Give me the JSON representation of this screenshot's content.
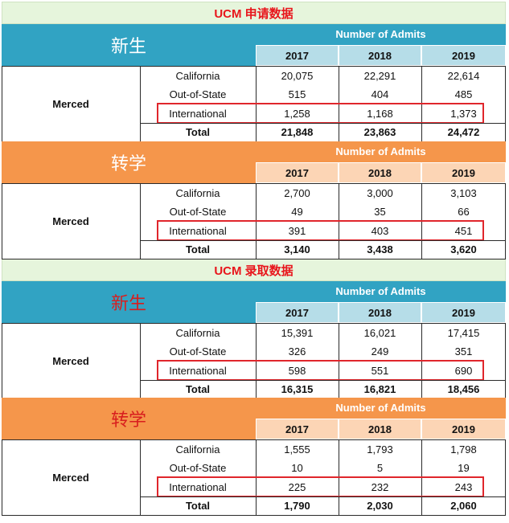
{
  "application": {
    "title": "UCM 申请数据",
    "freshman": {
      "label": "新生",
      "label_color": "#ffffff",
      "header_color": "#31a3c3",
      "metric": "Number of Admits",
      "years": [
        "2017",
        "2018",
        "2019"
      ],
      "school": "Merced",
      "rows": [
        {
          "name": "California",
          "values": [
            "20,075",
            "22,291",
            "22,614"
          ]
        },
        {
          "name": "Out-of-State",
          "values": [
            "515",
            "404",
            "485"
          ]
        },
        {
          "name": "International",
          "values": [
            "1,258",
            "1,168",
            "1,373"
          ]
        },
        {
          "name": "Total",
          "values": [
            "21,848",
            "23,863",
            "24,472"
          ]
        }
      ]
    },
    "transfer": {
      "label": "转学",
      "label_color": "#ffffff",
      "header_color": "#f5964b",
      "metric": "Number of Admits",
      "years": [
        "2017",
        "2018",
        "2019"
      ],
      "school": "Merced",
      "rows": [
        {
          "name": "California",
          "values": [
            "2,700",
            "3,000",
            "3,103"
          ]
        },
        {
          "name": "Out-of-State",
          "values": [
            "49",
            "35",
            "66"
          ]
        },
        {
          "name": "International",
          "values": [
            "391",
            "403",
            "451"
          ]
        },
        {
          "name": "Total",
          "values": [
            "3,140",
            "3,438",
            "3,620"
          ]
        }
      ]
    }
  },
  "admission": {
    "title": "UCM 录取数据",
    "freshman": {
      "label": "新生",
      "label_color": "#d81e1e",
      "header_color": "#31a3c3",
      "metric": "Number of Admits",
      "years": [
        "2017",
        "2018",
        "2019"
      ],
      "school": "Merced",
      "rows": [
        {
          "name": "California",
          "values": [
            "15,391",
            "16,021",
            "17,415"
          ]
        },
        {
          "name": "Out-of-State",
          "values": [
            "326",
            "249",
            "351"
          ]
        },
        {
          "name": "International",
          "values": [
            "598",
            "551",
            "690"
          ]
        },
        {
          "name": "Total",
          "values": [
            "16,315",
            "16,821",
            "18,456"
          ]
        }
      ]
    },
    "transfer": {
      "label": "转学",
      "label_color": "#d81e1e",
      "header_color": "#f5964b",
      "metric": "Number of Admits",
      "years": [
        "2017",
        "2018",
        "2019"
      ],
      "school": "Merced",
      "rows": [
        {
          "name": "California",
          "values": [
            "1,555",
            "1,793",
            "1,798"
          ]
        },
        {
          "name": "Out-of-State",
          "values": [
            "10",
            "5",
            "19"
          ]
        },
        {
          "name": "International",
          "values": [
            "225",
            "232",
            "243"
          ]
        },
        {
          "name": "Total",
          "values": [
            "1,790",
            "2,030",
            "2,060"
          ]
        }
      ]
    }
  },
  "highlight_color": "#e0262c",
  "highlighted_row": "International"
}
